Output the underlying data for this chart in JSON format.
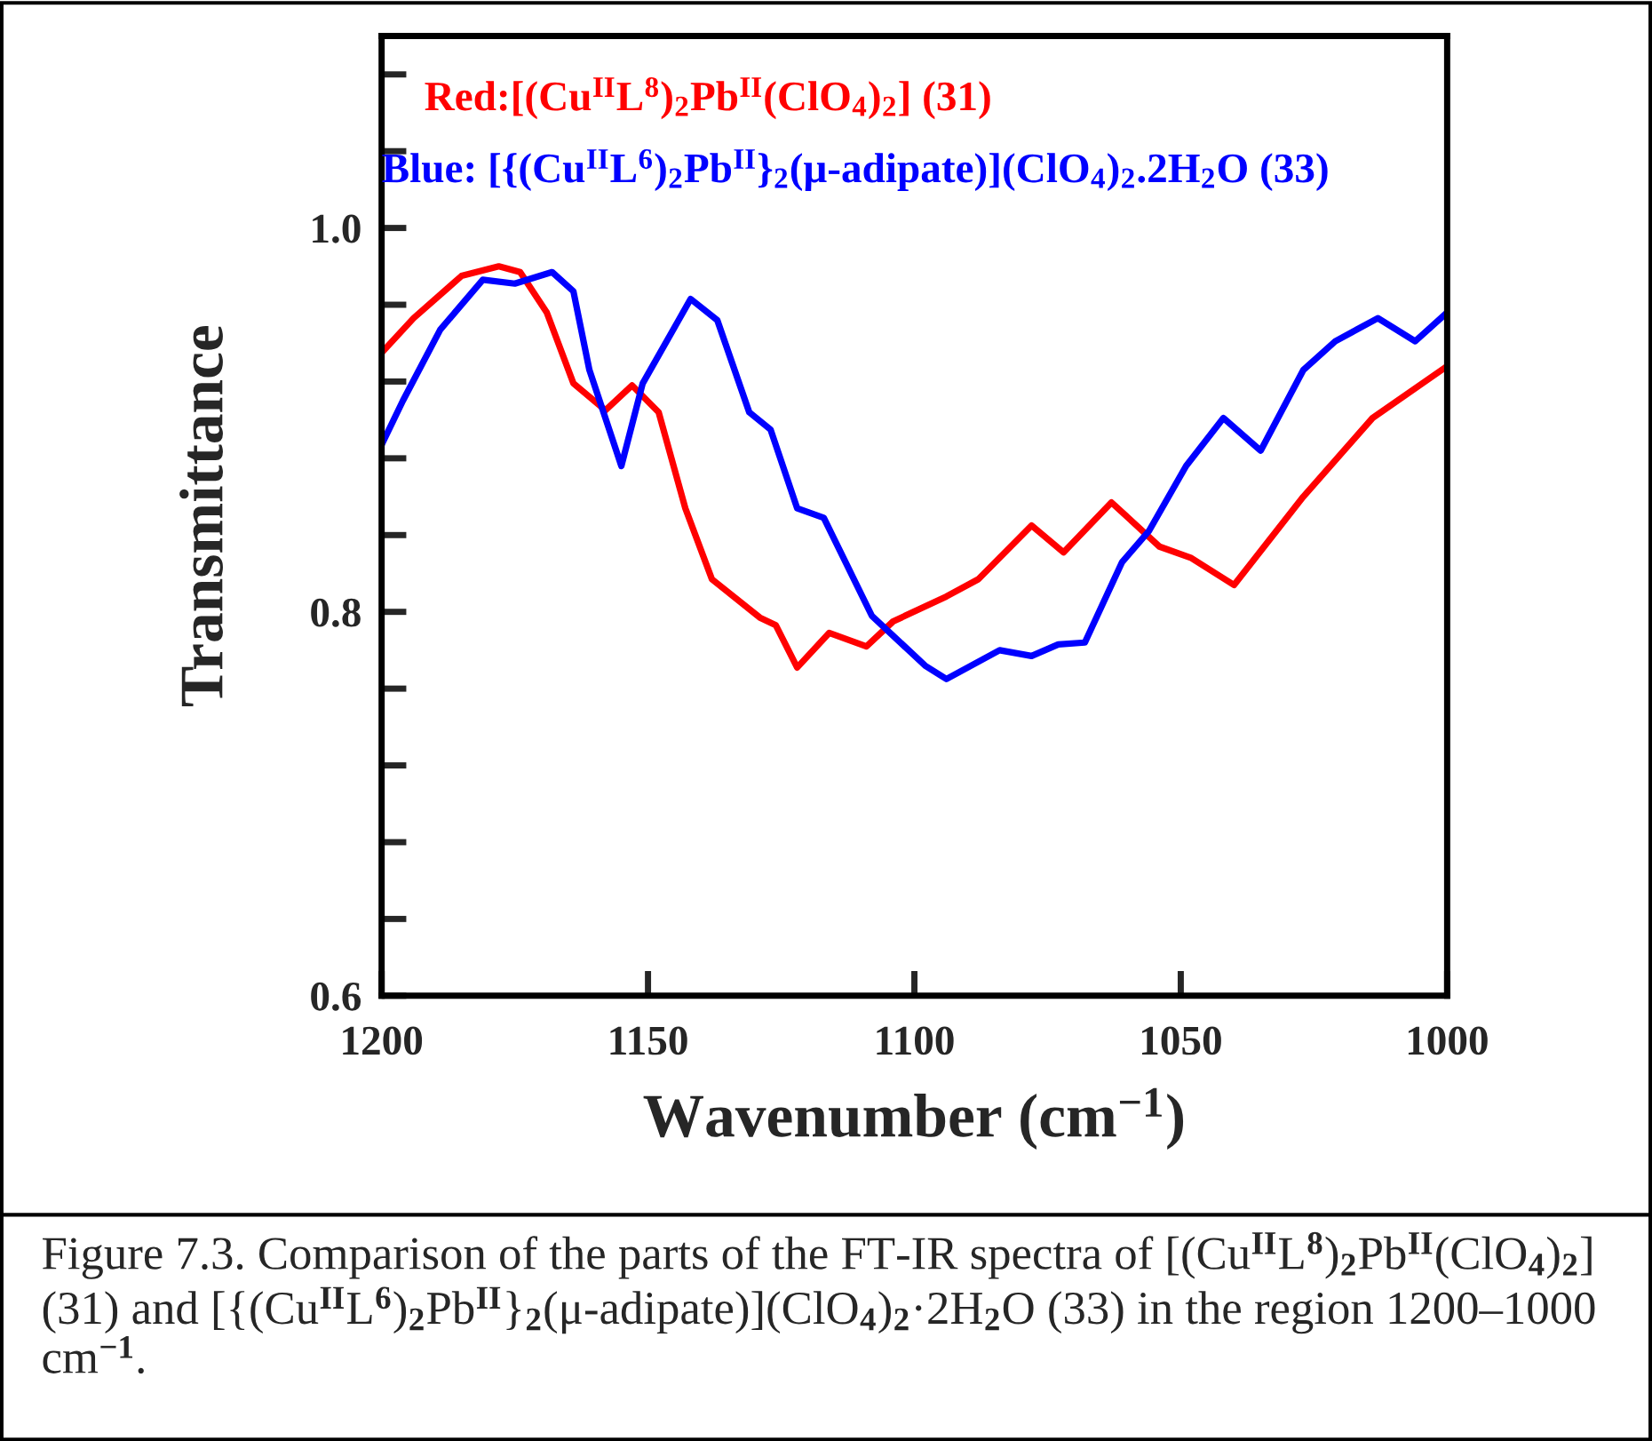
{
  "chart_data": {
    "type": "line",
    "xlabel": "Wavenumber (cm$^{−1}$)",
    "ylabel": "Transmittance",
    "xlim": [
      1200,
      1000
    ],
    "xticks": [
      1200,
      1150,
      1100,
      1050,
      1000
    ],
    "ylim": [
      0.6,
      1.1
    ],
    "yticks": [
      0.6,
      {
        "value": 0.64,
        "label": null
      },
      {
        "value": 0.68,
        "label": null
      },
      {
        "value": 0.72,
        "label": null
      },
      {
        "value": 0.76,
        "label": null
      },
      0.8,
      {
        "value": 0.84,
        "label": null
      },
      {
        "value": 0.88,
        "label": null
      },
      {
        "value": 0.92,
        "label": null
      },
      {
        "value": 0.96,
        "label": null
      },
      {
        "value": 1.0,
        "label": "1.0"
      },
      {
        "value": 1.04,
        "label": null
      },
      {
        "value": 1.08,
        "label": null
      }
    ],
    "grid": false,
    "marker": "none",
    "line_style": "solid",
    "series": [
      {
        "name": "Red:[(Cu$^{II}$L$^{8}$)$_{2}$Pb$^{II}$(ClO$_{4}$)$_{2}$] (31)",
        "color": "#ff0000",
        "x": [
          1200,
          1194,
          1185,
          1178,
          1174,
          1169,
          1164,
          1158,
          1153,
          1148,
          1143,
          1138,
          1129,
          1126,
          1122,
          1116,
          1109,
          1104,
          1094,
          1088,
          1078,
          1072,
          1063,
          1054,
          1048,
          1040,
          1027,
          1014,
          1000
        ],
        "values": [
          0.935,
          0.953,
          0.975,
          0.98,
          0.977,
          0.956,
          0.919,
          0.905,
          0.918,
          0.904,
          0.854,
          0.817,
          0.797,
          0.793,
          0.771,
          0.789,
          0.782,
          0.795,
          0.808,
          0.817,
          0.845,
          0.831,
          0.857,
          0.834,
          0.828,
          0.814,
          0.86,
          0.901,
          0.928
        ]
      },
      {
        "name": "Blue: [{(Cu$^{II}$L$^{6}$)$_{2}$Pb$^{II}$}$_{2}$(μ-adipate)](ClO$_{4}$)$_{2}$.2H$_{2}$O (33)",
        "color": "#0000ff",
        "x": [
          1200,
          1196,
          1189,
          1181,
          1175,
          1168,
          1164,
          1161,
          1155,
          1151,
          1142,
          1137,
          1131,
          1127,
          1122,
          1117,
          1108,
          1098,
          1094,
          1084,
          1078,
          1073,
          1068,
          1061,
          1056,
          1049,
          1042,
          1035,
          1027,
          1021,
          1013,
          1006,
          1000
        ],
        "values": [
          0.887,
          0.91,
          0.947,
          0.973,
          0.971,
          0.977,
          0.967,
          0.926,
          0.876,
          0.919,
          0.963,
          0.952,
          0.904,
          0.895,
          0.854,
          0.849,
          0.798,
          0.772,
          0.765,
          0.78,
          0.777,
          0.783,
          0.784,
          0.826,
          0.842,
          0.876,
          0.901,
          0.884,
          0.926,
          0.941,
          0.953,
          0.941,
          0.956
        ]
      }
    ],
    "annotations": [
      "Figure 7.3. Comparison of the parts of the FT-IR spectra of [(Cu$^{II}$L$^{8}$)$_{2}$Pb$^{II}$(ClO$_{4}$)$_{2}$] (31) and [{(Cu$^{II}$L$^{6}$)$_{2}$Pb$^{II}$}$_{2}$(μ-adipate)](ClO$_{4}$)$_{2}$·2H$_{2}$O (33) in the region 1200–1000 cm$^{−1}$."
    ]
  }
}
